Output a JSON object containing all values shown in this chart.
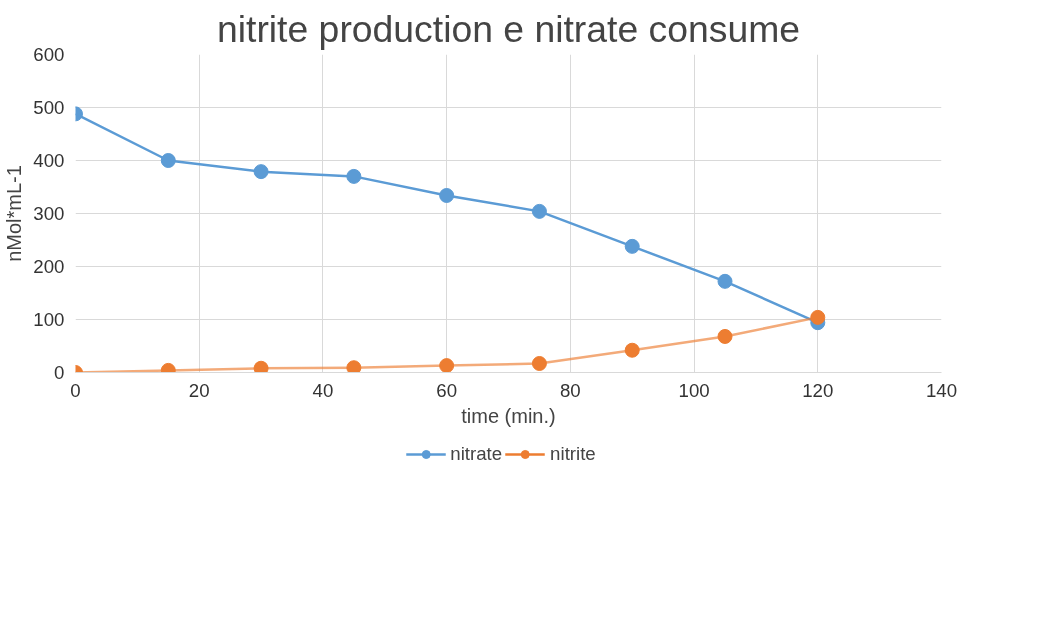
{
  "chart_data": {
    "type": "line",
    "title": "nitrite production e nitrate consume",
    "xlabel": "time (min.)",
    "ylabel": "nMol*mL-1",
    "x": [
      0,
      15,
      30,
      45,
      60,
      75,
      90,
      105,
      120
    ],
    "series": [
      {
        "name": "nitrate",
        "color": "#5b9bd5",
        "values": [
          488,
          400,
          379,
          370,
          334,
          304,
          238,
          172,
          94
        ]
      },
      {
        "name": "nitrite",
        "color": "#ed7d31",
        "values": [
          0,
          4,
          8,
          9,
          13,
          17,
          42,
          68,
          104
        ]
      }
    ],
    "xlim": [
      0,
      140
    ],
    "xticks": [
      0,
      20,
      40,
      60,
      80,
      100,
      120,
      140
    ],
    "ylim": [
      0,
      600
    ],
    "yticks": [
      0,
      100,
      200,
      300,
      400,
      500,
      600
    ],
    "grid": true,
    "legend": "bottom",
    "marker": "circle",
    "line_style": "solid"
  }
}
